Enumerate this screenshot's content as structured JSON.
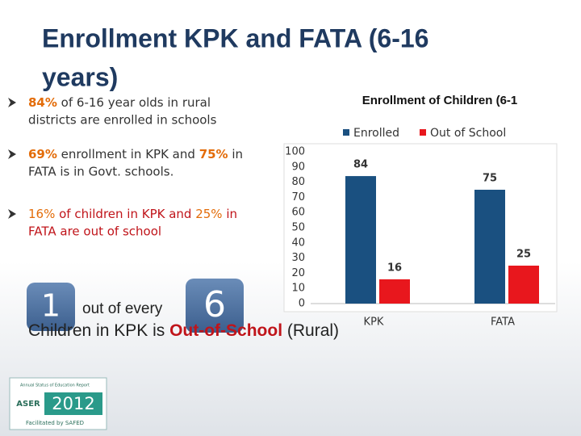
{
  "slide": {
    "title": [
      "Enrollment KPK and FATA (6-16",
      "years)"
    ],
    "bullets": [
      [
        "84%",
        " of 6-16 year olds in rural",
        "districts are enrolled in schools"
      ],
      [
        "69%",
        " enrollment in KPK and ",
        "75%",
        " in",
        "FATA is in Govt. schools."
      ],
      [
        "16%",
        " of children in KPK and ",
        "25%",
        " in",
        "FATA are out of school"
      ]
    ],
    "ratio": {
      "numerator": "1",
      "middle": "out of every",
      "denominator": "6"
    },
    "caption": [
      "Children in KPK is ",
      "Out-of-School",
      " (Rural)"
    ],
    "logo": {
      "top": "Annual Status of Education Report",
      "name": "ASER",
      "year": "2012",
      "footer": "Facilitated by SAFED"
    }
  },
  "chart_data": {
    "type": "bar",
    "title": "Enrollment of Children (6-1",
    "categories": [
      "KPK",
      "FATA"
    ],
    "series": [
      {
        "name": "Enrolled",
        "color": "#1a5080",
        "values": [
          84,
          75
        ]
      },
      {
        "name": "Out of School",
        "color": "#e8171d",
        "values": [
          16,
          25
        ]
      }
    ],
    "ylim": [
      0,
      100
    ],
    "yticks": [
      0,
      10,
      20,
      30,
      40,
      50,
      60,
      70,
      80,
      90,
      100
    ],
    "legend": "top",
    "data_labels": true
  }
}
